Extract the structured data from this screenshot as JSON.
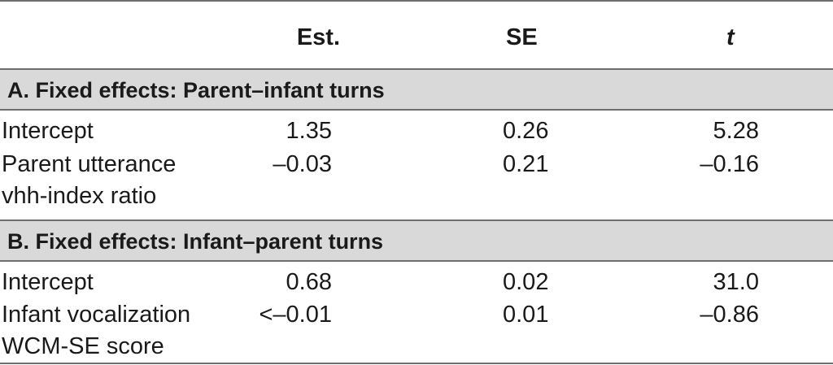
{
  "header": {
    "est": "Est.",
    "se": "SE",
    "t": "t"
  },
  "sectionA": {
    "title": "A. Fixed effects: Parent–infant turns",
    "rows": [
      {
        "name": "Intercept",
        "name2": "",
        "est": "1.35",
        "se": "0.26",
        "t": "5.28"
      },
      {
        "name": "Parent utterance",
        "name2": "vhh-index ratio",
        "est": "–0.03",
        "se": "0.21",
        "t": "–0.16"
      }
    ]
  },
  "sectionB": {
    "title": "B. Fixed effects: Infant–parent turns",
    "rows": [
      {
        "name": "Intercept",
        "name2": "",
        "est": "0.68",
        "se": "0.02",
        "t": "31.0"
      },
      {
        "name": "Infant vocalization",
        "name2": "WCM-SE score",
        "est": "<–0.01",
        "se": "0.01",
        "t": "–0.86"
      }
    ]
  }
}
